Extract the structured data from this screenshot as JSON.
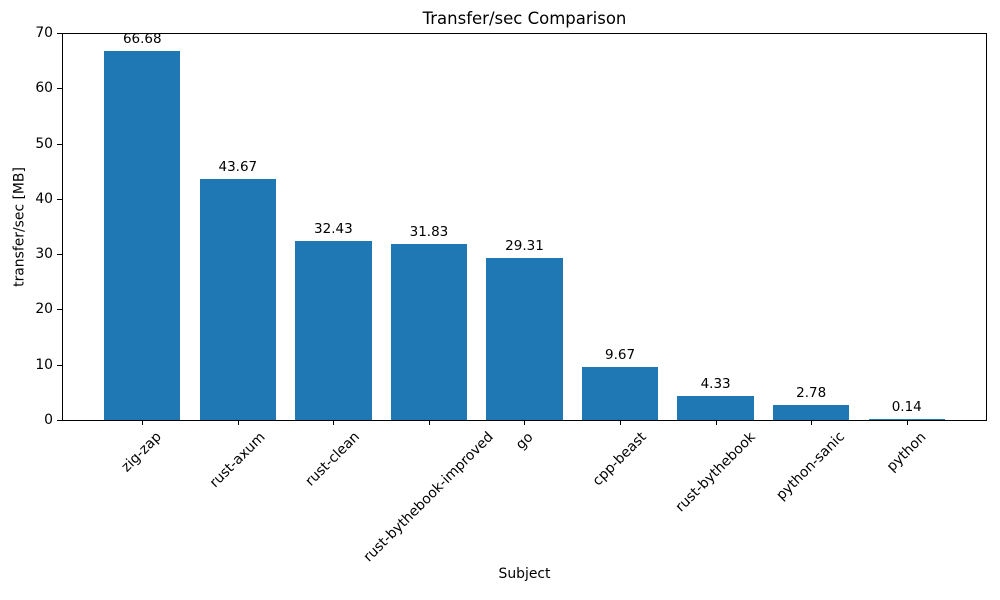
{
  "chart_data": {
    "type": "bar",
    "title": "Transfer/sec Comparison",
    "xlabel": "Subject",
    "ylabel": "transfer/sec [MB]",
    "categories": [
      "zig-zap",
      "rust-axum",
      "rust-clean",
      "rust-bythebook-improved",
      "go",
      "cpp-beast",
      "rust-bythebook",
      "python-sanic",
      "python"
    ],
    "values": [
      66.68,
      43.67,
      32.43,
      31.83,
      29.31,
      9.67,
      4.33,
      2.78,
      0.14
    ],
    "value_labels": [
      "66.68",
      "43.67",
      "32.43",
      "31.83",
      "29.31",
      "9.67",
      "4.33",
      "2.78",
      "0.14"
    ],
    "ylim": [
      0,
      70
    ],
    "yticks": [
      0,
      10,
      20,
      30,
      40,
      50,
      60,
      70
    ],
    "bar_color": "#1f77b4",
    "axis_color": "#000000",
    "legend": "none",
    "grid": "off",
    "x_tick_rotation_deg": 45
  }
}
